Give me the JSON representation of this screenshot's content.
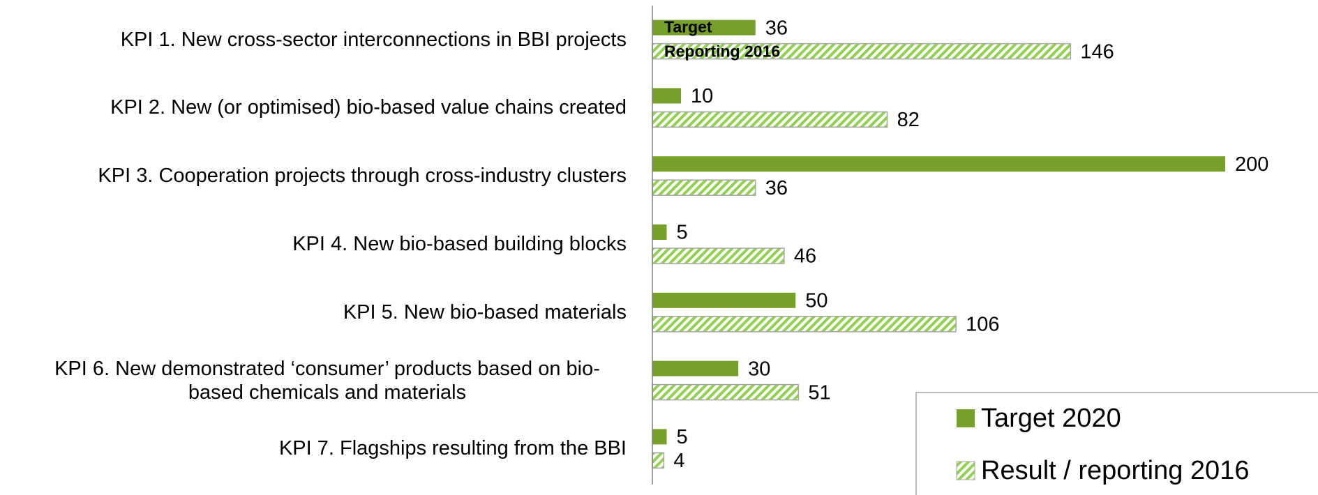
{
  "chart_data": {
    "type": "barh",
    "categories": [
      "KPI 1. New cross-sector interconnections in BBI projects",
      "KPI 2. New (or optimised) bio-based value chains created",
      "KPI 3. Cooperation projects through cross-industry clusters",
      "KPI 4. New bio-based building blocks",
      "KPI 5. New bio-based materials",
      "KPI 6. New demonstrated ‘consumer’ products based on bio-based chemicals and materials",
      "KPI 7. Flagships resulting from the BBI"
    ],
    "series": [
      {
        "name": "Target 2020",
        "color": "#77a02a",
        "hatch": false,
        "values": [
          36,
          10,
          200,
          5,
          50,
          30,
          5
        ]
      },
      {
        "name": "Result / reporting 2016",
        "color": "#92d050",
        "hatch": true,
        "values": [
          146,
          82,
          36,
          46,
          106,
          51,
          4
        ]
      }
    ],
    "annotations": [
      "Target",
      "Reporting 2016"
    ],
    "xlim": [
      0,
      200
    ],
    "legend": "bottom-right"
  }
}
